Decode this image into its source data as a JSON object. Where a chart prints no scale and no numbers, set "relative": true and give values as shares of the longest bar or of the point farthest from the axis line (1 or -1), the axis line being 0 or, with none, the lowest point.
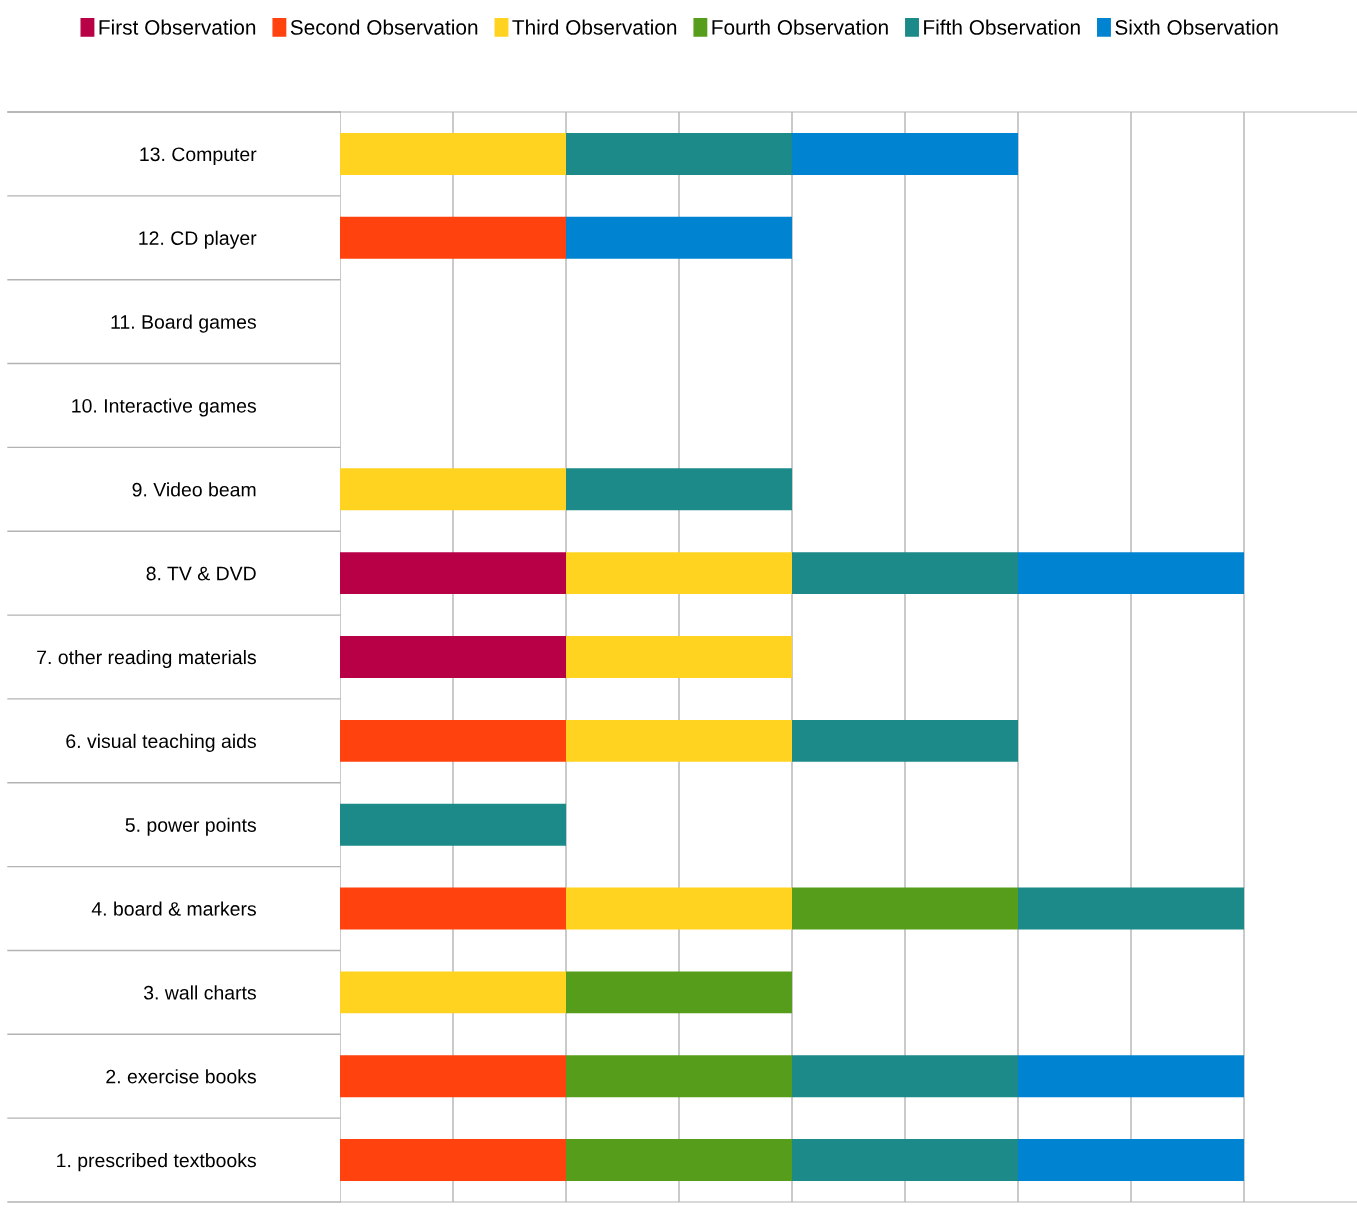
{
  "chart_data": {
    "type": "bar",
    "orientation": "horizontal",
    "stacked": true,
    "relative": true,
    "grid": "x",
    "legend": "top",
    "categories": [
      "13. Computer",
      "12. CD player",
      "11. Board games",
      "10. Interactive games",
      "9. Video beam",
      "8. TV & DVD",
      "7. other reading materials",
      "6. visual teaching aids",
      "5. power points",
      "4. board & markers",
      "3. wall charts",
      "2. exercise books",
      "1. prescribed textbooks"
    ],
    "series": [
      {
        "name": "First Observation",
        "color": "#b80047",
        "values": [
          null,
          null,
          null,
          null,
          null,
          0.25,
          0.25,
          null,
          null,
          null,
          null,
          null,
          null
        ]
      },
      {
        "name": "Second Observation",
        "color": "#ff420e",
        "values": [
          null,
          0.25,
          null,
          null,
          null,
          null,
          null,
          0.25,
          null,
          0.25,
          null,
          0.25,
          0.25
        ]
      },
      {
        "name": "Third Observation",
        "color": "#ffd320",
        "values": [
          0.25,
          null,
          null,
          null,
          0.25,
          0.25,
          0.25,
          0.25,
          null,
          0.25,
          0.25,
          null,
          null
        ]
      },
      {
        "name": "Fourth Observation",
        "color": "#579d1c",
        "values": [
          null,
          null,
          null,
          null,
          null,
          null,
          null,
          null,
          null,
          0.25,
          0.25,
          0.25,
          0.25
        ]
      },
      {
        "name": "Fifth Observation",
        "color": "#1b8a89",
        "values": [
          0.25,
          null,
          null,
          null,
          0.25,
          0.25,
          null,
          0.25,
          0.25,
          0.25,
          null,
          0.25,
          0.25
        ]
      },
      {
        "name": "Sixth Observation",
        "color": "#0084d1",
        "values": [
          0.25,
          0.25,
          null,
          null,
          null,
          0.25,
          null,
          null,
          null,
          null,
          null,
          0.25,
          0.25
        ]
      }
    ]
  }
}
